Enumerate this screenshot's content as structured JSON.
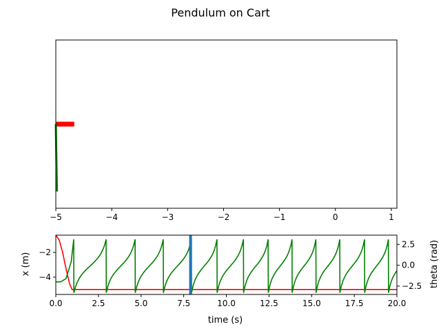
{
  "figure": {
    "title": "Pendulum on Cart"
  },
  "chart_data": [
    {
      "type": "line",
      "role": "animation-frame",
      "xlim": [
        -5,
        1.1
      ],
      "ylim": [
        -1.5,
        1.5
      ],
      "xticks": [
        -5,
        -4,
        -3,
        -2,
        -1,
        0,
        1
      ],
      "xtick_labels": [
        "−5",
        "−4",
        "−3",
        "−2",
        "−1",
        "0",
        "1"
      ],
      "yticks_visible": false,
      "elements": {
        "cart": {
          "x": [
            -5.0,
            -4.67
          ],
          "y": [
            0.0,
            0.0
          ],
          "color": "#ff0000"
        },
        "pendulum": {
          "x": [
            -5.0,
            -4.98
          ],
          "y": [
            0.0,
            -1.2
          ],
          "color": "#008000"
        }
      }
    },
    {
      "type": "line",
      "role": "time-series",
      "xlabel": "time (s)",
      "ylabel_left": "x (m)",
      "ylabel_right": "theta (rad)",
      "xlim": [
        0,
        20
      ],
      "ylim_left": [
        -5.4,
        -0.6
      ],
      "ylim_right": [
        -3.5,
        3.6
      ],
      "xticks": [
        0,
        2.5,
        5,
        7.5,
        10,
        12.5,
        15,
        17.5,
        20
      ],
      "xtick_labels": [
        "0.0",
        "2.5",
        "5.0",
        "7.5",
        "10.0",
        "12.5",
        "15.0",
        "17.5",
        "20.0"
      ],
      "yticks_left": [
        -2,
        -4
      ],
      "ytick_labels_left": [
        "−2",
        "−4"
      ],
      "yticks_right": [
        2.5,
        0,
        -2.5
      ],
      "ytick_labels_right": [
        "2.5",
        "0.0",
        "−2.5"
      ],
      "time_marker": {
        "t": 7.9,
        "color": "#1f77b4"
      },
      "series": [
        {
          "axis": "left",
          "color": "#ff0000",
          "x": [
            0,
            0.2,
            0.4,
            0.6,
            0.8,
            0.95,
            1.05,
            20
          ],
          "y": [
            -0.6,
            -1.0,
            -2.0,
            -3.3,
            -4.5,
            -5.0,
            -5.0,
            -5.0
          ]
        },
        {
          "axis": "right",
          "color": "#008000",
          "x": [
            0,
            0.3,
            0.6,
            0.9
          ],
          "y": [
            -2.0,
            -1.98,
            -1.6,
            0.4
          ],
          "periodic": {
            "jumps": [
              1.05,
              2.95,
              4.65,
              6.3,
              7.95,
              9.45,
              11.0,
              12.45,
              13.85,
              15.25,
              16.65,
              18.1,
              19.5
            ],
            "low": -3.3,
            "high": 3.1,
            "end_t": 20
          }
        }
      ]
    }
  ]
}
